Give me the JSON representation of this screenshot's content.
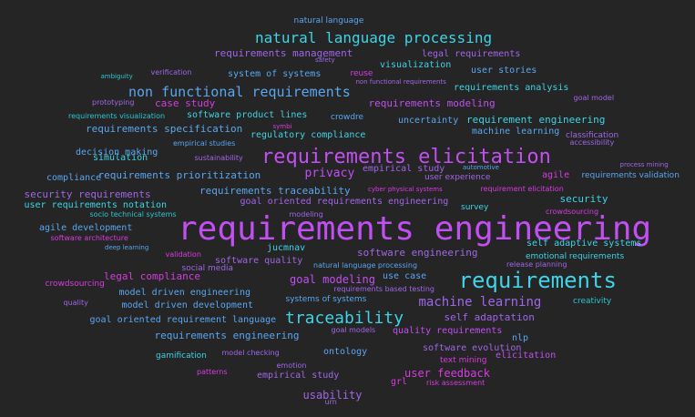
{
  "palette": {
    "background": "#252525",
    "blue": "#5AA6F0",
    "cyan": "#3ED3E6",
    "purple": "#C14FF2",
    "violet": "#A066E8",
    "magenta": "#D83BE2",
    "teal": "#2CC5CF"
  },
  "words": [
    "natural language",
    "natural language processing",
    "safety",
    "legal requirements",
    "requirements management",
    "visualization",
    "ambiguity",
    "verification",
    "system of systems",
    "reuse",
    "user stories",
    "non functional requirements",
    "requirements analysis",
    "non functional requirements",
    "goal model",
    "prototyping",
    "case study",
    "requirements modeling",
    "requirements visualization",
    "software product lines",
    "crowdre",
    "uncertainty",
    "requirement engineering",
    "requirements specification",
    "symbi",
    "machine learning",
    "regulatory compliance",
    "classification",
    "empirical studies",
    "accessibility",
    "decision making",
    "requirements elicitation",
    "simulation",
    "sustainability",
    "process mining",
    "empirical study",
    "automotive",
    "compliance",
    "requirements prioritization",
    "privacy",
    "agile",
    "requirements validation",
    "user experience",
    "cyber physical systems",
    "requirement elicitation",
    "security requirements",
    "requirements traceability",
    "security",
    "user requirements notation",
    "goal oriented requirements engineering",
    "survey",
    "socio technical systems",
    "modeling",
    "crowdsourcing",
    "agile development",
    "requirements engineering",
    "software architecture",
    "self adaptive systems",
    "deep learning",
    "jucmnav",
    "validation",
    "software engineering",
    "emotional requirements",
    "software quality",
    "natural language processing",
    "release planning",
    "social media",
    "requirements",
    "legal compliance",
    "goal modeling",
    "use case",
    "crowdsourcing",
    "requirements based testing",
    "model driven engineering",
    "quality",
    "systems of systems",
    "machine learning",
    "creativity",
    "model driven development",
    "traceability",
    "goal oriented requirement language",
    "self adaptation",
    "goal models",
    "quality requirements",
    "requirements engineering",
    "nlp",
    "ontology",
    "software evolution",
    "gamification",
    "model checking",
    "elicitation",
    "text mining",
    "emotion",
    "patterns",
    "user feedback",
    "empirical study",
    "grl",
    "risk assessment",
    "usability",
    "urn"
  ],
  "word_colors": [
    "blue",
    "cyan",
    "violet",
    "violet",
    "violet",
    "cyan",
    "teal",
    "violet",
    "blue",
    "magenta",
    "blue",
    "blue",
    "cyan",
    "violet",
    "violet",
    "violet",
    "magenta",
    "purple",
    "teal",
    "cyan",
    "blue",
    "blue",
    "cyan",
    "blue",
    "magenta",
    "blue",
    "cyan",
    "violet",
    "blue",
    "violet",
    "blue",
    "purple",
    "cyan",
    "violet",
    "violet",
    "violet",
    "blue",
    "blue",
    "blue",
    "purple",
    "magenta",
    "blue",
    "violet",
    "magenta",
    "magenta",
    "violet",
    "blue",
    "cyan",
    "cyan",
    "violet",
    "cyan",
    "teal",
    "violet",
    "magenta",
    "blue",
    "purple",
    "magenta",
    "cyan",
    "blue",
    "cyan",
    "magenta",
    "violet",
    "cyan",
    "violet",
    "blue",
    "violet",
    "violet",
    "cyan",
    "magenta",
    "purple",
    "blue",
    "magenta",
    "violet",
    "blue",
    "violet",
    "blue",
    "violet",
    "teal",
    "blue",
    "cyan",
    "blue",
    "violet",
    "violet",
    "purple",
    "blue",
    "blue",
    "blue",
    "violet",
    "cyan",
    "violet",
    "purple",
    "magenta",
    "violet",
    "magenta",
    "magenta",
    "violet",
    "magenta",
    "magenta",
    "violet",
    "violet"
  ]
}
